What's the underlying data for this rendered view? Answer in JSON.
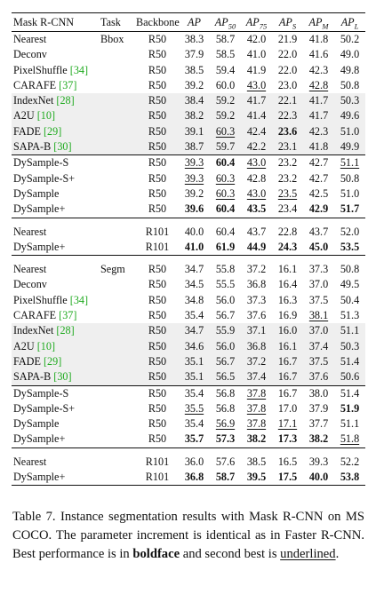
{
  "table": {
    "headers": {
      "method": "Mask R-CNN",
      "task": "Task",
      "backbone": "Backbone",
      "ap": {
        "main": "AP",
        "sub": ""
      },
      "ap50": {
        "main": "AP",
        "sub": "50"
      },
      "ap75": {
        "main": "AP",
        "sub": "75"
      },
      "aps": {
        "main": "AP",
        "sub": "S"
      },
      "apm": {
        "main": "AP",
        "sub": "M"
      },
      "apl": {
        "main": "AP",
        "sub": "L"
      }
    },
    "groups": [
      {
        "rows": [
          {
            "method": "Nearest",
            "cite": "",
            "task": "Bbox",
            "backbone": "R50",
            "values": [
              "38.3",
              "58.7",
              "42.0",
              "21.9",
              "41.8",
              "50.2"
            ],
            "bold": [],
            "underline": [],
            "gray": false
          },
          {
            "method": "Deconv",
            "cite": "",
            "task": "",
            "backbone": "R50",
            "values": [
              "37.9",
              "58.5",
              "41.0",
              "22.0",
              "41.6",
              "49.0"
            ],
            "bold": [],
            "underline": [],
            "gray": false
          },
          {
            "method": "PixelShuffle ",
            "cite": "[34]",
            "task": "",
            "backbone": "R50",
            "values": [
              "38.5",
              "59.4",
              "41.9",
              "22.0",
              "42.3",
              "49.8"
            ],
            "bold": [],
            "underline": [],
            "gray": false
          },
          {
            "method": "CARAFE ",
            "cite": "[37]",
            "task": "",
            "backbone": "R50",
            "values": [
              "39.2",
              "60.0",
              "43.0",
              "23.0",
              "42.8",
              "50.8"
            ],
            "bold": [],
            "underline": [
              2,
              4
            ],
            "gray": false
          },
          {
            "method": "IndexNet ",
            "cite": "[28]",
            "task": "",
            "backbone": "R50",
            "values": [
              "38.4",
              "59.2",
              "41.7",
              "22.1",
              "41.7",
              "50.3"
            ],
            "bold": [],
            "underline": [],
            "gray": true
          },
          {
            "method": "A2U ",
            "cite": "[10]",
            "task": "",
            "backbone": "R50",
            "values": [
              "38.2",
              "59.2",
              "41.4",
              "22.3",
              "41.7",
              "49.6"
            ],
            "bold": [],
            "underline": [],
            "gray": true
          },
          {
            "method": "FADE ",
            "cite": "[29]",
            "task": "",
            "backbone": "R50",
            "values": [
              "39.1",
              "60.3",
              "42.4",
              "23.6",
              "42.3",
              "51.0"
            ],
            "bold": [
              3
            ],
            "underline": [
              1
            ],
            "gray": true
          },
          {
            "method": "SAPA-B ",
            "cite": "[30]",
            "task": "",
            "backbone": "R50",
            "values": [
              "38.7",
              "59.7",
              "42.2",
              "23.1",
              "41.8",
              "49.9"
            ],
            "bold": [],
            "underline": [],
            "gray": true
          },
          {
            "method": "DySample-S",
            "cite": "",
            "task": "",
            "backbone": "R50",
            "values": [
              "39.3",
              "60.4",
              "43.0",
              "23.2",
              "42.7",
              "51.1"
            ],
            "bold": [
              1
            ],
            "underline": [
              0,
              2,
              5
            ],
            "gray": false,
            "sep": true
          },
          {
            "method": "DySample-S+",
            "cite": "",
            "task": "",
            "backbone": "R50",
            "values": [
              "39.3",
              "60.3",
              "42.8",
              "23.2",
              "42.7",
              "50.8"
            ],
            "bold": [],
            "underline": [
              0,
              1
            ],
            "gray": false
          },
          {
            "method": "DySample",
            "cite": "",
            "task": "",
            "backbone": "R50",
            "values": [
              "39.2",
              "60.3",
              "43.0",
              "23.5",
              "42.5",
              "51.0"
            ],
            "bold": [],
            "underline": [
              1,
              2,
              3
            ],
            "gray": false
          },
          {
            "method": "DySample+",
            "cite": "",
            "task": "",
            "backbone": "R50",
            "values": [
              "39.6",
              "60.4",
              "43.5",
              "23.4",
              "42.9",
              "51.7"
            ],
            "bold": [
              0,
              1,
              2,
              4,
              5
            ],
            "underline": [],
            "gray": false
          }
        ]
      },
      {
        "rows": [
          {
            "method": "Nearest",
            "cite": "",
            "task": "",
            "backbone": "R101",
            "values": [
              "40.0",
              "60.4",
              "43.7",
              "22.8",
              "43.7",
              "52.0"
            ],
            "bold": [],
            "underline": [],
            "gray": false
          },
          {
            "method": "DySample+",
            "cite": "",
            "task": "",
            "backbone": "R101",
            "values": [
              "41.0",
              "61.9",
              "44.9",
              "24.3",
              "45.0",
              "53.5"
            ],
            "bold": [
              0,
              1,
              2,
              3,
              4,
              5
            ],
            "underline": [],
            "gray": false
          }
        ]
      },
      {
        "rows": [
          {
            "method": "Nearest",
            "cite": "",
            "task": "Segm",
            "backbone": "R50",
            "values": [
              "34.7",
              "55.8",
              "37.2",
              "16.1",
              "37.3",
              "50.8"
            ],
            "bold": [],
            "underline": [],
            "gray": false
          },
          {
            "method": "Deconv",
            "cite": "",
            "task": "",
            "backbone": "R50",
            "values": [
              "34.5",
              "55.5",
              "36.8",
              "16.4",
              "37.0",
              "49.5"
            ],
            "bold": [],
            "underline": [],
            "gray": false
          },
          {
            "method": "PixelShuffle ",
            "cite": "[34]",
            "task": "",
            "backbone": "R50",
            "values": [
              "34.8",
              "56.0",
              "37.3",
              "16.3",
              "37.5",
              "50.4"
            ],
            "bold": [],
            "underline": [],
            "gray": false
          },
          {
            "method": "CARAFE ",
            "cite": "[37]",
            "task": "",
            "backbone": "R50",
            "values": [
              "35.4",
              "56.7",
              "37.6",
              "16.9",
              "38.1",
              "51.3"
            ],
            "bold": [],
            "underline": [
              4
            ],
            "gray": false
          },
          {
            "method": "IndexNet ",
            "cite": "[28]",
            "task": "",
            "backbone": "R50",
            "values": [
              "34.7",
              "55.9",
              "37.1",
              "16.0",
              "37.0",
              "51.1"
            ],
            "bold": [],
            "underline": [],
            "gray": true
          },
          {
            "method": "A2U ",
            "cite": "[10]",
            "task": "",
            "backbone": "R50",
            "values": [
              "34.6",
              "56.0",
              "36.8",
              "16.1",
              "37.4",
              "50.3"
            ],
            "bold": [],
            "underline": [],
            "gray": true
          },
          {
            "method": "FADE ",
            "cite": "[29]",
            "task": "",
            "backbone": "R50",
            "values": [
              "35.1",
              "56.7",
              "37.2",
              "16.7",
              "37.5",
              "51.4"
            ],
            "bold": [],
            "underline": [],
            "gray": true
          },
          {
            "method": "SAPA-B ",
            "cite": "[30]",
            "task": "",
            "backbone": "R50",
            "values": [
              "35.1",
              "56.5",
              "37.4",
              "16.7",
              "37.6",
              "50.6"
            ],
            "bold": [],
            "underline": [],
            "gray": true
          },
          {
            "method": "DySample-S",
            "cite": "",
            "task": "",
            "backbone": "R50",
            "values": [
              "35.4",
              "56.8",
              "37.8",
              "16.7",
              "38.0",
              "51.4"
            ],
            "bold": [],
            "underline": [
              2
            ],
            "gray": false,
            "sep": true
          },
          {
            "method": "DySample-S+",
            "cite": "",
            "task": "",
            "backbone": "R50",
            "values": [
              "35.5",
              "56.8",
              "37.8",
              "17.0",
              "37.9",
              "51.9"
            ],
            "bold": [
              5
            ],
            "underline": [
              0,
              2
            ],
            "gray": false
          },
          {
            "method": "DySample",
            "cite": "",
            "task": "",
            "backbone": "R50",
            "values": [
              "35.4",
              "56.9",
              "37.8",
              "17.1",
              "37.7",
              "51.1"
            ],
            "bold": [],
            "underline": [
              1,
              2,
              3
            ],
            "gray": false
          },
          {
            "method": "DySample+",
            "cite": "",
            "task": "",
            "backbone": "R50",
            "values": [
              "35.7",
              "57.3",
              "38.2",
              "17.3",
              "38.2",
              "51.8"
            ],
            "bold": [
              0,
              1,
              2,
              3,
              4
            ],
            "underline": [
              5
            ],
            "gray": false
          }
        ]
      },
      {
        "rows": [
          {
            "method": "Nearest",
            "cite": "",
            "task": "",
            "backbone": "R101",
            "values": [
              "36.0",
              "57.6",
              "38.5",
              "16.5",
              "39.3",
              "52.2"
            ],
            "bold": [],
            "underline": [],
            "gray": false
          },
          {
            "method": "DySample+",
            "cite": "",
            "task": "",
            "backbone": "R101",
            "values": [
              "36.8",
              "58.7",
              "39.5",
              "17.5",
              "40.0",
              "53.8"
            ],
            "bold": [
              0,
              1,
              2,
              3,
              4,
              5
            ],
            "underline": [],
            "gray": false
          }
        ]
      }
    ]
  },
  "caption": {
    "part1": "Table 7. Instance segmentation results with Mask R-CNN on MS COCO. The parameter increment is identical as in Faster R-CNN. Best performance is in ",
    "bold_word": "boldface",
    "part2": " and second best is ",
    "underline_word": "underlined",
    "part3": "."
  }
}
